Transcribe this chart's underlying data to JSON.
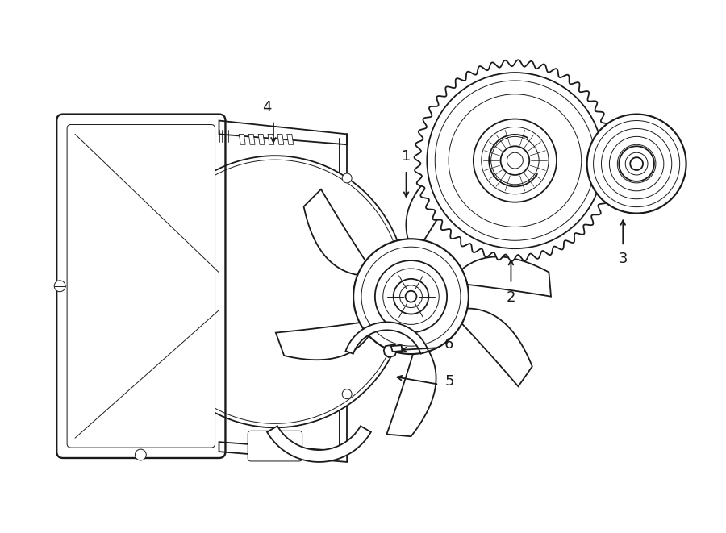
{
  "background_color": "#ffffff",
  "line_color": "#1a1a1a",
  "label_color": "#000000",
  "lw": 1.3,
  "tlw": 0.7,
  "fig_width": 9.0,
  "fig_height": 6.61,
  "dpi": 100
}
